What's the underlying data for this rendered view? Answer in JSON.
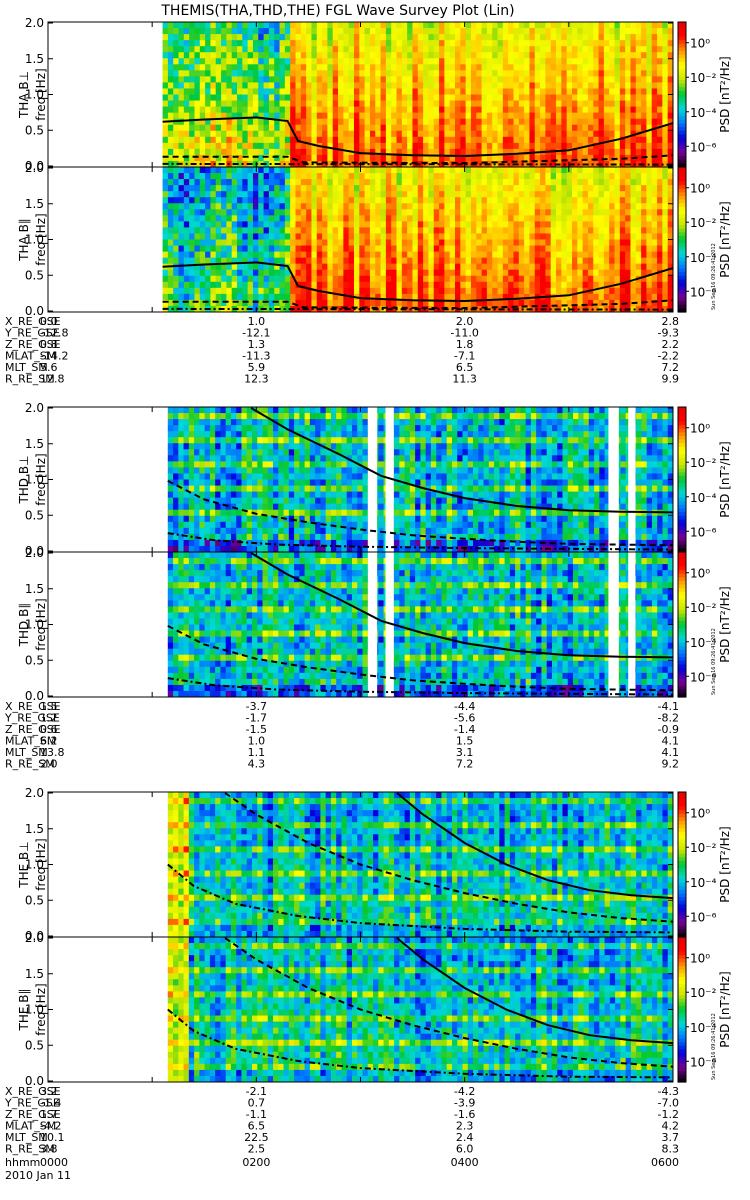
{
  "title": "THEMIS(THA,THD,THE) FGL Wave Survey Plot (Lin)",
  "stamp": "Sun Sep 16 09:26:41 2012",
  "colorbar": {
    "label": "PSD [nT²/Hz]",
    "ticks": [
      "10⁰",
      "10⁻²",
      "10⁻⁴",
      "10⁻⁶"
    ],
    "log_values": [
      0,
      -2,
      -4,
      -6
    ]
  },
  "colors": {
    "background": "#ffffff",
    "curve": "#000000",
    "colormap": [
      "#000000",
      "#7a0098",
      "#0000e0",
      "#0078ff",
      "#00d8d8",
      "#00c832",
      "#c8e600",
      "#ffff00",
      "#ff9600",
      "#ff0000",
      "#e60000"
    ]
  },
  "chart_data": {
    "type": "heatmap",
    "x": [
      "0000",
      "0200",
      "0400",
      "0600"
    ],
    "x_range": [
      0,
      6
    ],
    "x_unit": "hours",
    "date": "2010 Jan 11",
    "ylim": [
      0,
      2.0
    ],
    "yticks": [
      "0.0",
      "0.5",
      "1.0",
      "1.5",
      "2.0"
    ],
    "ylabel": "freq [Hz]",
    "time_label": "hhmm",
    "probes": [
      {
        "panels": [
          {
            "name": "THA B⊥"
          },
          {
            "name": "THA B∥"
          }
        ],
        "data_start": 1.1,
        "white_gaps": [],
        "solid": [
          [
            1.1,
            0.62
          ],
          [
            1.5,
            0.65
          ],
          [
            2.0,
            0.68
          ],
          [
            2.3,
            0.63
          ],
          [
            2.4,
            0.35
          ],
          [
            2.6,
            0.28
          ],
          [
            3.0,
            0.18
          ],
          [
            3.5,
            0.15
          ],
          [
            4.0,
            0.14
          ],
          [
            4.5,
            0.17
          ],
          [
            5.0,
            0.22
          ],
          [
            5.5,
            0.38
          ],
          [
            6.0,
            0.6
          ]
        ],
        "dashed": [
          [
            1.1,
            0.13
          ],
          [
            2.3,
            0.13
          ],
          [
            2.45,
            0.05
          ],
          [
            4.0,
            0.04
          ],
          [
            5.5,
            0.1
          ],
          [
            6.0,
            0.15
          ]
        ],
        "dashdot": [
          [
            1.1,
            0.03
          ],
          [
            6.0,
            0.02
          ]
        ],
        "ephemeris": [
          {
            "label": "X_RE_GSE",
            "values": [
              "0.0",
              "1.0",
              "2.0",
              "2.8"
            ]
          },
          {
            "label": "Y_RE_GSE",
            "values": [
              "-12.8",
              "-12.1",
              "-11.0",
              "-9.3"
            ]
          },
          {
            "label": "Z_RE_GSE",
            "values": [
              "0.8",
              "1.3",
              "1.8",
              "2.2"
            ]
          },
          {
            "label": "MLAT_SM",
            "values": [
              "-14.2",
              "-11.3",
              "-7.1",
              "-2.2"
            ]
          },
          {
            "label": "MLT_SM",
            "values": [
              "5.6",
              "5.9",
              "6.5",
              "7.2"
            ]
          },
          {
            "label": "R_RE_SM",
            "values": [
              "12.8",
              "12.3",
              "11.3",
              "9.9"
            ]
          }
        ]
      },
      {
        "panels": [
          {
            "name": "THD B⊥"
          },
          {
            "name": "THD B∥"
          }
        ],
        "data_start": 1.15,
        "white_gaps": [
          [
            3.07,
            3.16
          ],
          [
            3.24,
            3.32
          ],
          [
            5.38,
            5.48
          ],
          [
            5.57,
            5.64
          ]
        ],
        "solid": [
          [
            1.95,
            2.0
          ],
          [
            2.3,
            1.7
          ],
          [
            2.8,
            1.35
          ],
          [
            3.2,
            1.05
          ],
          [
            3.6,
            0.88
          ],
          [
            4.0,
            0.74
          ],
          [
            4.5,
            0.63
          ],
          [
            5.0,
            0.57
          ],
          [
            5.5,
            0.55
          ],
          [
            6.0,
            0.54
          ]
        ],
        "dashed": [
          [
            1.15,
            0.98
          ],
          [
            1.5,
            0.72
          ],
          [
            2.0,
            0.52
          ],
          [
            2.5,
            0.4
          ],
          [
            3.0,
            0.3
          ],
          [
            3.5,
            0.22
          ],
          [
            4.0,
            0.17
          ],
          [
            4.5,
            0.13
          ],
          [
            5.0,
            0.1
          ],
          [
            6.0,
            0.08
          ]
        ],
        "dashdot": [
          [
            1.15,
            0.25
          ],
          [
            1.6,
            0.15
          ],
          [
            2.2,
            0.09
          ],
          [
            3.0,
            0.06
          ],
          [
            4.0,
            0.04
          ],
          [
            6.0,
            0.02
          ]
        ],
        "ephemeris": [
          {
            "label": "X_RE_GSE",
            "values": [
              "1.5",
              "-3.7",
              "-4.4",
              "-4.1"
            ]
          },
          {
            "label": "Y_RE_GSE",
            "values": [
              "1.2",
              "-1.7",
              "-5.6",
              "-8.2"
            ]
          },
          {
            "label": "Z_RE_GSE",
            "values": [
              "0.6",
              "-1.5",
              "-1.4",
              "-0.9"
            ]
          },
          {
            "label": "MLAT_SM",
            "values": [
              "6.2",
              "1.0",
              "1.5",
              "4.1"
            ]
          },
          {
            "label": "MLT_SM",
            "values": [
              "13.8",
              "1.1",
              "3.1",
              "4.1"
            ]
          },
          {
            "label": "R_RE_SM",
            "values": [
              "2.0",
              "4.3",
              "7.2",
              "9.2"
            ]
          }
        ]
      },
      {
        "panels": [
          {
            "name": "THE B⊥"
          },
          {
            "name": "THE B∥"
          }
        ],
        "data_start": 1.15,
        "white_gaps": [],
        "solid": [
          [
            3.35,
            2.0
          ],
          [
            3.6,
            1.7
          ],
          [
            4.0,
            1.3
          ],
          [
            4.4,
            1.0
          ],
          [
            4.8,
            0.78
          ],
          [
            5.2,
            0.64
          ],
          [
            5.6,
            0.57
          ],
          [
            6.0,
            0.53
          ]
        ],
        "dashed": [
          [
            1.7,
            2.0
          ],
          [
            2.0,
            1.7
          ],
          [
            2.5,
            1.3
          ],
          [
            3.0,
            1.0
          ],
          [
            3.5,
            0.78
          ],
          [
            4.0,
            0.6
          ],
          [
            4.5,
            0.45
          ],
          [
            5.0,
            0.33
          ],
          [
            5.5,
            0.25
          ],
          [
            6.0,
            0.2
          ]
        ],
        "dashdot": [
          [
            1.15,
            1.0
          ],
          [
            1.4,
            0.7
          ],
          [
            1.8,
            0.45
          ],
          [
            2.4,
            0.28
          ],
          [
            3.0,
            0.18
          ],
          [
            4.0,
            0.1
          ],
          [
            5.0,
            0.06
          ],
          [
            6.0,
            0.05
          ]
        ],
        "ephemeris": [
          {
            "label": "X_RE_GSE",
            "values": [
              "3.2",
              "-2.1",
              "-4.2",
              "-4.3"
            ]
          },
          {
            "label": "Y_RE_GSE",
            "values": [
              "-1.4",
              "0.7",
              "-3.9",
              "-7.0"
            ]
          },
          {
            "label": "Z_RE_GSE",
            "values": [
              "1.7",
              "-1.1",
              "-1.6",
              "-1.2"
            ]
          },
          {
            "label": "MLAT_SM",
            "values": [
              "-4.2",
              "6.5",
              "2.3",
              "4.2"
            ]
          },
          {
            "label": "MLT_SM",
            "values": [
              "10.1",
              "22.5",
              "2.4",
              "3.7"
            ]
          },
          {
            "label": "R_RE_SM",
            "values": [
              "3.8",
              "2.5",
              "6.0",
              "8.3"
            ]
          }
        ]
      }
    ]
  }
}
